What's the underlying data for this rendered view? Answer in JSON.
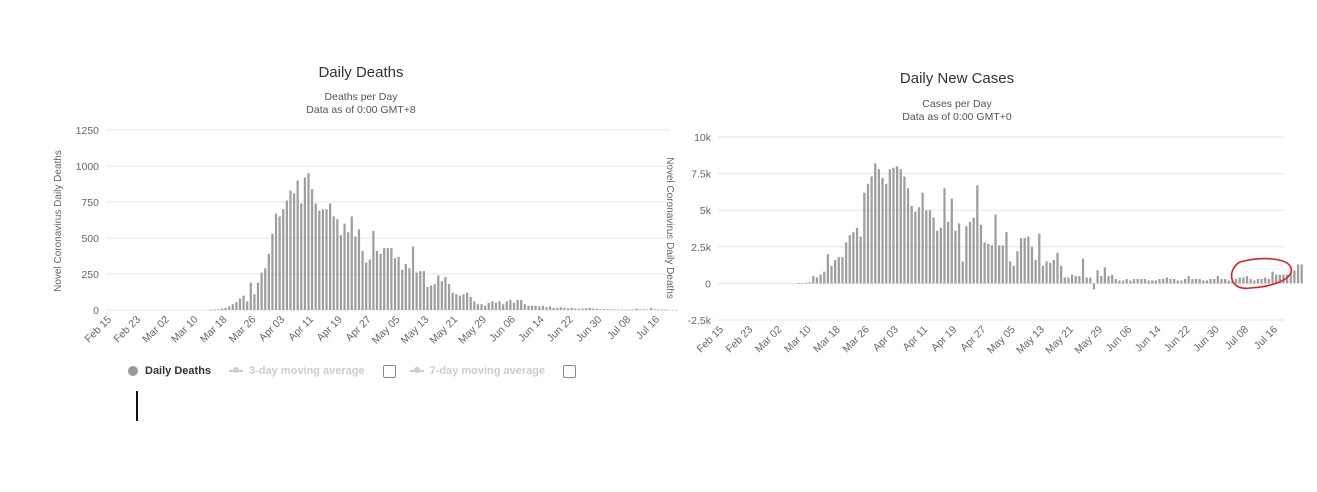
{
  "left_chart": {
    "title": "Daily Deaths",
    "subtitle1": "Deaths per Day",
    "subtitle2": "Data as of 0:00 GMT+8",
    "ylabel": "Novel Coronavirus Daily Deaths",
    "right_axis_label": "Novel Coronavirus Daily Deaths",
    "yticks": [
      "1250",
      "1000",
      "750",
      "500",
      "250",
      "0"
    ],
    "xticks": [
      "Feb 15",
      "Feb 23",
      "Mar 02",
      "Mar 10",
      "Mar 18",
      "Mar 26",
      "Apr 03",
      "Apr 11",
      "Apr 19",
      "Apr 27",
      "May 05",
      "May 13",
      "May 21",
      "May 29",
      "Jun 06",
      "Jun 14",
      "Jun 22",
      "Jun 30",
      "Jul 08",
      "Jul 16"
    ],
    "legend": {
      "series1": "Daily Deaths",
      "series2": "3-day moving average",
      "series3": "7-day moving average"
    },
    "bar_color": "#9e9e9e"
  },
  "right_chart": {
    "title": "Daily New Cases",
    "subtitle1": "Cases per Day",
    "subtitle2": "Data as of 0:00 GMT+0",
    "yticks": [
      "10k",
      "7.5k",
      "5k",
      "2.5k",
      "0",
      "-2.5k"
    ],
    "xticks": [
      "Feb 15",
      "Feb 23",
      "Mar 02",
      "Mar 10",
      "Mar 18",
      "Mar 26",
      "Apr 03",
      "Apr 11",
      "Apr 19",
      "Apr 27",
      "May 05",
      "May 13",
      "May 21",
      "May 29",
      "Jun 06",
      "Jun 14",
      "Jun 22",
      "Jun 30",
      "Jul 08",
      "Jul 16"
    ],
    "bar_color": "#9e9e9e",
    "highlight_color": "#e02020"
  },
  "chart_data": [
    {
      "type": "bar",
      "title": "Daily Deaths",
      "subtitle": "Deaths per Day / Data as of 0:00 GMT+8",
      "ylabel": "Novel Coronavirus Daily Deaths",
      "xlabel": "",
      "start_date": "Feb 15",
      "ylim": [
        0,
        1250
      ],
      "grid": true,
      "legend": "bottom-left",
      "series": [
        {
          "name": "Daily Deaths",
          "values": [
            0,
            0,
            0,
            0,
            0,
            0,
            0,
            0,
            0,
            0,
            0,
            0,
            0,
            0,
            0,
            0,
            0,
            0,
            0,
            0,
            0,
            0,
            0,
            0,
            0,
            0,
            0,
            2,
            3,
            5,
            10,
            15,
            25,
            40,
            55,
            80,
            100,
            60,
            190,
            110,
            190,
            260,
            290,
            390,
            530,
            670,
            650,
            700,
            760,
            830,
            810,
            900,
            740,
            920,
            950,
            840,
            740,
            690,
            700,
            700,
            740,
            650,
            630,
            520,
            600,
            540,
            650,
            510,
            560,
            410,
            330,
            350,
            550,
            410,
            390,
            430,
            430,
            430,
            360,
            370,
            280,
            320,
            290,
            440,
            260,
            270,
            270,
            160,
            170,
            180,
            240,
            200,
            230,
            180,
            120,
            110,
            100,
            110,
            120,
            90,
            60,
            40,
            40,
            30,
            50,
            60,
            50,
            60,
            40,
            60,
            70,
            50,
            70,
            70,
            40,
            30,
            30,
            30,
            25,
            30,
            20,
            25,
            15,
            15,
            20,
            15,
            12,
            15,
            10,
            8,
            10,
            12,
            15,
            10,
            8,
            5,
            5,
            5,
            4,
            3,
            3,
            4,
            3,
            2,
            3,
            10,
            5,
            4,
            3,
            15,
            5,
            3,
            3,
            2,
            2,
            1,
            1
          ]
        }
      ]
    },
    {
      "type": "bar",
      "title": "Daily New Cases",
      "subtitle": "Cases per Day / Data as of 0:00 GMT+0",
      "xlabel": "",
      "ylabel": "",
      "start_date": "Feb 15",
      "ylim": [
        -2500,
        10000
      ],
      "grid": true,
      "series": [
        {
          "name": "Daily New Cases",
          "values": [
            0,
            0,
            0,
            0,
            0,
            0,
            0,
            0,
            0,
            0,
            0,
            0,
            0,
            0,
            0,
            0,
            0,
            0,
            0,
            0,
            20,
            30,
            50,
            80,
            500,
            400,
            600,
            800,
            2000,
            1200,
            1600,
            1800,
            1800,
            2800,
            3300,
            3500,
            3800,
            3200,
            6200,
            6800,
            7300,
            8200,
            7800,
            7200,
            6800,
            7800,
            7900,
            8000,
            7800,
            7300,
            6500,
            5300,
            4900,
            5200,
            6200,
            5000,
            5000,
            4500,
            3600,
            3800,
            6500,
            4200,
            5800,
            3600,
            4100,
            1500,
            3900,
            4200,
            4500,
            6700,
            4000,
            2800,
            2700,
            2600,
            4700,
            2600,
            2600,
            3500,
            1500,
            1200,
            2200,
            3100,
            3100,
            3200,
            2500,
            1600,
            3400,
            1200,
            1500,
            1400,
            1600,
            2100,
            1200,
            400,
            400,
            600,
            500,
            500,
            1700,
            400,
            400,
            -400,
            900,
            500,
            1100,
            500,
            600,
            300,
            200,
            200,
            300,
            200,
            300,
            300,
            300,
            300,
            200,
            200,
            200,
            300,
            300,
            400,
            300,
            300,
            200,
            200,
            300,
            500,
            300,
            300,
            300,
            200,
            200,
            300,
            300,
            500,
            300,
            300,
            200,
            200,
            300,
            400,
            400,
            500,
            300,
            200,
            300,
            300,
            400,
            300,
            800,
            600,
            600,
            600,
            600,
            700,
            900,
            1300,
            1300
          ]
        }
      ]
    }
  ]
}
